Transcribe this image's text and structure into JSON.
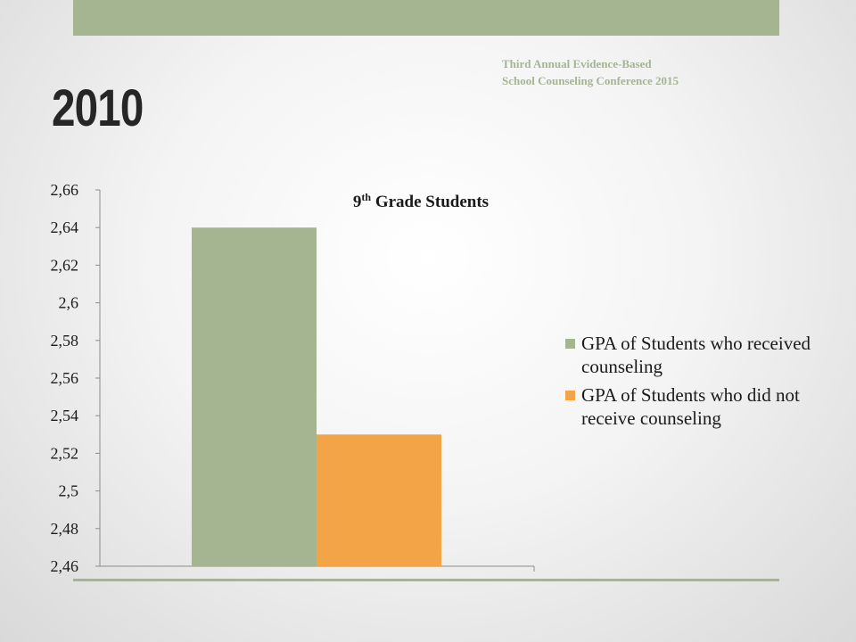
{
  "slide": {
    "title": "2010",
    "conference": "Third Annual Evidence-Based School Counseling Conference 2015"
  },
  "chart_data": {
    "type": "bar",
    "title_main": "9",
    "title_sup": "th",
    "title_rest": " Grade Students",
    "categories": [
      ""
    ],
    "series": [
      {
        "name": "GPA of Students who received counseling",
        "values": [
          2.64
        ],
        "color": "#a5b592"
      },
      {
        "name": "GPA of Students who did not receive counseling",
        "values": [
          2.53
        ],
        "color": "#f3a447"
      }
    ],
    "ylim": [
      2.46,
      2.66
    ],
    "yticks": [
      2.46,
      2.48,
      2.5,
      2.52,
      2.54,
      2.56,
      2.58,
      2.6,
      2.62,
      2.64,
      2.66
    ],
    "ytick_labels": [
      "2,46",
      "2,48",
      "2,5",
      "2,52",
      "2,54",
      "2,56",
      "2,58",
      "2,6",
      "2,62",
      "2,64",
      "2,66"
    ],
    "legend_position": "right",
    "grid": false
  }
}
